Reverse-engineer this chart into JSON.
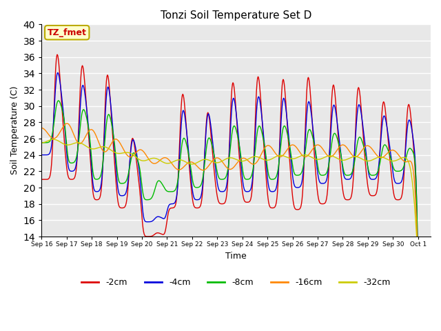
{
  "title": "Tonzi Soil Temperature Set D",
  "xlabel": "Time",
  "ylabel": "Soil Temperature (C)",
  "ylim": [
    14,
    40
  ],
  "yticks": [
    14,
    16,
    18,
    20,
    22,
    24,
    26,
    28,
    30,
    32,
    34,
    36,
    38,
    40
  ],
  "annotation_text": "TZ_fmet",
  "annotation_bg": "#ffffcc",
  "annotation_border": "#bbaa00",
  "annotation_text_color": "#cc0000",
  "colors": {
    "-2cm": "#dd0000",
    "-4cm": "#0000dd",
    "-8cm": "#00bb00",
    "-16cm": "#ff8800",
    "-32cm": "#cccc00"
  },
  "plot_bg": "#e8e8e8",
  "grid_color": "#ffffff",
  "start_day": 16
}
